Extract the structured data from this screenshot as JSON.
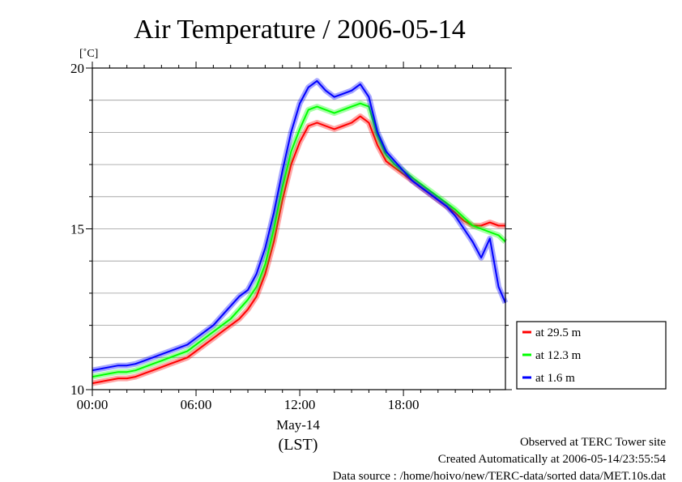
{
  "chart_data": {
    "type": "line",
    "title": "Air Temperature / 2006-05-14",
    "y_unit": "[˚C]",
    "ylim": [
      10,
      20
    ],
    "y_ticks": [
      10,
      15,
      20
    ],
    "y_tick_labels": [
      "10",
      "15",
      "20"
    ],
    "y_minor_step": 1,
    "grid": true,
    "xlim": [
      0,
      23.9
    ],
    "x_ticks": [
      0,
      6,
      12,
      18
    ],
    "x_tick_labels": [
      "00:00",
      "06:00",
      "12:00",
      "18:00"
    ],
    "x_date_label": "May-14",
    "x_zone_label": "(LST)",
    "legend_position": "right",
    "series": [
      {
        "name": "at 29.5 m",
        "color": "#ff0000",
        "x": [
          0,
          0.5,
          1,
          1.5,
          2,
          2.5,
          3,
          3.5,
          4,
          4.5,
          5,
          5.5,
          6,
          6.5,
          7,
          7.5,
          8,
          8.5,
          9,
          9.5,
          10,
          10.5,
          11,
          11.5,
          12,
          12.5,
          13,
          13.5,
          14,
          14.5,
          15,
          15.5,
          16,
          16.5,
          17,
          17.5,
          18,
          18.5,
          19,
          19.5,
          20,
          20.5,
          21,
          21.5,
          22,
          22.5,
          23,
          23.5,
          23.9
        ],
        "y": [
          10.2,
          10.25,
          10.3,
          10.35,
          10.35,
          10.4,
          10.5,
          10.6,
          10.7,
          10.8,
          10.9,
          11.0,
          11.2,
          11.4,
          11.6,
          11.8,
          12.0,
          12.2,
          12.5,
          12.9,
          13.6,
          14.6,
          15.9,
          17.0,
          17.7,
          18.2,
          18.3,
          18.2,
          18.1,
          18.2,
          18.3,
          18.5,
          18.3,
          17.6,
          17.1,
          16.9,
          16.7,
          16.5,
          16.3,
          16.1,
          15.9,
          15.7,
          15.5,
          15.25,
          15.1,
          15.1,
          15.2,
          15.1,
          15.1
        ]
      },
      {
        "name": "at 12.3 m",
        "color": "#00ff00",
        "x": [
          0,
          0.5,
          1,
          1.5,
          2,
          2.5,
          3,
          3.5,
          4,
          4.5,
          5,
          5.5,
          6,
          6.5,
          7,
          7.5,
          8,
          8.5,
          9,
          9.5,
          10,
          10.5,
          11,
          11.5,
          12,
          12.5,
          13,
          13.5,
          14,
          14.5,
          15,
          15.5,
          16,
          16.5,
          17,
          17.5,
          18,
          18.5,
          19,
          19.5,
          20,
          20.5,
          21,
          21.5,
          22,
          22.5,
          23,
          23.5,
          23.9
        ],
        "y": [
          10.4,
          10.45,
          10.5,
          10.55,
          10.55,
          10.6,
          10.7,
          10.8,
          10.9,
          11.0,
          11.1,
          11.2,
          11.4,
          11.6,
          11.8,
          12.0,
          12.2,
          12.5,
          12.8,
          13.2,
          13.9,
          15.0,
          16.3,
          17.4,
          18.1,
          18.7,
          18.8,
          18.7,
          18.6,
          18.7,
          18.8,
          18.9,
          18.8,
          17.9,
          17.3,
          17.0,
          16.8,
          16.6,
          16.4,
          16.2,
          16.0,
          15.8,
          15.6,
          15.35,
          15.1,
          15.0,
          14.9,
          14.8,
          14.6
        ]
      },
      {
        "name": "at 1.6 m",
        "color": "#0000ff",
        "x": [
          0,
          0.5,
          1,
          1.5,
          2,
          2.5,
          3,
          3.5,
          4,
          4.5,
          5,
          5.5,
          6,
          6.5,
          7,
          7.5,
          8,
          8.5,
          9,
          9.5,
          10,
          10.5,
          11,
          11.5,
          12,
          12.5,
          13,
          13.5,
          14,
          14.5,
          15,
          15.5,
          16,
          16.5,
          17,
          17.5,
          18,
          18.5,
          19,
          19.5,
          20,
          20.5,
          21,
          21.5,
          22,
          22.5,
          23,
          23.2,
          23.5,
          23.9
        ],
        "y": [
          10.6,
          10.65,
          10.7,
          10.75,
          10.75,
          10.8,
          10.9,
          11.0,
          11.1,
          11.2,
          11.3,
          11.4,
          11.6,
          11.8,
          12.0,
          12.3,
          12.6,
          12.9,
          13.1,
          13.6,
          14.4,
          15.5,
          16.8,
          18.0,
          18.9,
          19.4,
          19.6,
          19.3,
          19.1,
          19.2,
          19.3,
          19.5,
          19.1,
          18.0,
          17.4,
          17.1,
          16.8,
          16.5,
          16.3,
          16.1,
          15.9,
          15.7,
          15.4,
          15.0,
          14.6,
          14.1,
          14.7,
          14.1,
          13.2,
          12.7
        ]
      }
    ]
  },
  "footer": {
    "line1": "Observed at TERC Tower site",
    "line2": "Created Automatically at 2006-05-14/23:55:54",
    "line3": "Data source : /home/hoivo/new/TERC-data/sorted  data/MET.10s.dat"
  }
}
